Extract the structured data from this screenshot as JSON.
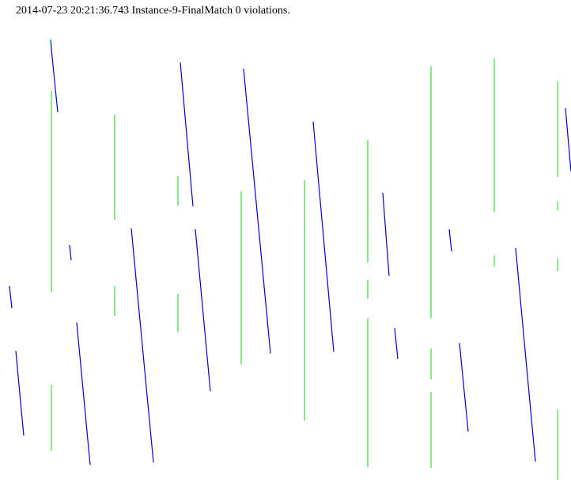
{
  "header": {
    "text": "2014-07-23 20:21:36.743 Instance-9-FinalMatch 0 violations."
  },
  "colors": {
    "green": "#33dd33",
    "blue": "#0000cc",
    "teal": "#008080",
    "background": "#ffffff"
  }
}
